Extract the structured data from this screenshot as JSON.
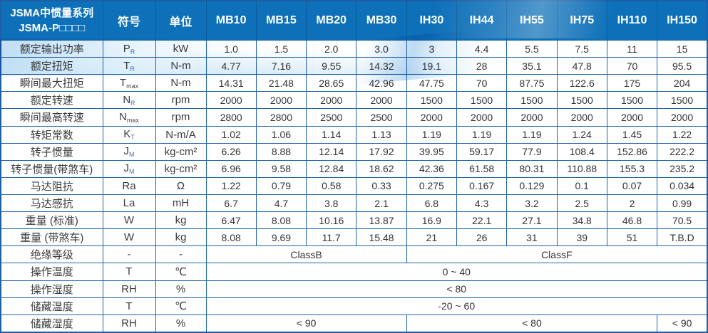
{
  "header": {
    "title_line1": "JSMA中惯量系列",
    "title_line2": "JSMA-P□□□□",
    "col_symbol": "符号",
    "col_unit": "单位",
    "models": [
      "MB10",
      "MB15",
      "MB20",
      "MB30",
      "IH30",
      "IH44",
      "IH55",
      "IH75",
      "IH110",
      "IH150"
    ]
  },
  "colors": {
    "header_bg": "#0e70b8",
    "border": "#2063ac",
    "text": "#3c3c3c",
    "subscript_accent": "#4479b6",
    "wave_tint": "#9cc8e8"
  },
  "rows": [
    {
      "label": "额定输出功率",
      "symbol": {
        "base": "P",
        "sub": "R"
      },
      "unit": "kW",
      "cells": [
        {
          "text": "1.0",
          "span": 1
        },
        {
          "text": "1.5",
          "span": 1
        },
        {
          "text": "2.0",
          "span": 1
        },
        {
          "text": "3.0",
          "span": 1
        },
        {
          "text": "3",
          "span": 1
        },
        {
          "text": "4.4",
          "span": 1
        },
        {
          "text": "5.5",
          "span": 1
        },
        {
          "text": "7.5",
          "span": 1
        },
        {
          "text": "11",
          "span": 1
        },
        {
          "text": "15",
          "span": 1
        }
      ]
    },
    {
      "label": "额定扭矩",
      "symbol": {
        "base": "T",
        "sub": "R"
      },
      "unit": "N-m",
      "cells": [
        {
          "text": "4.77",
          "span": 1
        },
        {
          "text": "7.16",
          "span": 1
        },
        {
          "text": "9.55",
          "span": 1
        },
        {
          "text": "14.32",
          "span": 1
        },
        {
          "text": "19.1",
          "span": 1
        },
        {
          "text": "28",
          "span": 1
        },
        {
          "text": "35.1",
          "span": 1
        },
        {
          "text": "47.8",
          "span": 1
        },
        {
          "text": "70",
          "span": 1
        },
        {
          "text": "95.5",
          "span": 1
        }
      ]
    },
    {
      "label": "瞬间最大扭矩",
      "symbol": {
        "base": "T",
        "sub": "max"
      },
      "unit": "N-m",
      "cells": [
        {
          "text": "14.31",
          "span": 1
        },
        {
          "text": "21.48",
          "span": 1
        },
        {
          "text": "28.65",
          "span": 1
        },
        {
          "text": "42.96",
          "span": 1
        },
        {
          "text": "47.75",
          "span": 1
        },
        {
          "text": "70",
          "span": 1
        },
        {
          "text": "87.75",
          "span": 1
        },
        {
          "text": "122.6",
          "span": 1
        },
        {
          "text": "175",
          "span": 1
        },
        {
          "text": "204",
          "span": 1
        }
      ]
    },
    {
      "label": "额定转速",
      "symbol": {
        "base": "N",
        "sub": "R"
      },
      "unit": "rpm",
      "cells": [
        {
          "text": "2000",
          "span": 1
        },
        {
          "text": "2000",
          "span": 1
        },
        {
          "text": "2000",
          "span": 1
        },
        {
          "text": "2000",
          "span": 1
        },
        {
          "text": "1500",
          "span": 1
        },
        {
          "text": "1500",
          "span": 1
        },
        {
          "text": "1500",
          "span": 1
        },
        {
          "text": "1500",
          "span": 1
        },
        {
          "text": "1500",
          "span": 1
        },
        {
          "text": "1500",
          "span": 1
        }
      ]
    },
    {
      "label": "瞬间最高转速",
      "symbol": {
        "base": "N",
        "sub": "max"
      },
      "unit": "rpm",
      "cells": [
        {
          "text": "2800",
          "span": 1
        },
        {
          "text": "2800",
          "span": 1
        },
        {
          "text": "2500",
          "span": 1
        },
        {
          "text": "2500",
          "span": 1
        },
        {
          "text": "2000",
          "span": 1
        },
        {
          "text": "2000",
          "span": 1
        },
        {
          "text": "2000",
          "span": 1
        },
        {
          "text": "2000",
          "span": 1
        },
        {
          "text": "2000",
          "span": 1
        },
        {
          "text": "2000",
          "span": 1
        }
      ]
    },
    {
      "label": "转矩常数",
      "symbol": {
        "base": "K",
        "sub": "T"
      },
      "unit": "N-m/A",
      "cells": [
        {
          "text": "1.02",
          "span": 1
        },
        {
          "text": "1.06",
          "span": 1
        },
        {
          "text": "1.14",
          "span": 1
        },
        {
          "text": "1.13",
          "span": 1
        },
        {
          "text": "1.19",
          "span": 1
        },
        {
          "text": "1.19",
          "span": 1
        },
        {
          "text": "1.19",
          "span": 1
        },
        {
          "text": "1.24",
          "span": 1
        },
        {
          "text": "1.45",
          "span": 1
        },
        {
          "text": "1.22",
          "span": 1
        }
      ]
    },
    {
      "label": "转子惯量",
      "symbol": {
        "base": "J",
        "sub": "M"
      },
      "unit": "kg-cm²",
      "cells": [
        {
          "text": "6.26",
          "span": 1
        },
        {
          "text": "8.88",
          "span": 1
        },
        {
          "text": "12.14",
          "span": 1
        },
        {
          "text": "17.92",
          "span": 1
        },
        {
          "text": "39.95",
          "span": 1
        },
        {
          "text": "59.17",
          "span": 1
        },
        {
          "text": "77.9",
          "span": 1
        },
        {
          "text": "108.4",
          "span": 1
        },
        {
          "text": "152.86",
          "span": 1
        },
        {
          "text": "222.2",
          "span": 1
        }
      ]
    },
    {
      "label": "转子惯量(带煞车)",
      "symbol": {
        "base": "J",
        "sub": "M"
      },
      "unit": "kg-cm²",
      "cells": [
        {
          "text": "6.96",
          "span": 1
        },
        {
          "text": "9.58",
          "span": 1
        },
        {
          "text": "12.84",
          "span": 1
        },
        {
          "text": "18.62",
          "span": 1
        },
        {
          "text": "42.36",
          "span": 1
        },
        {
          "text": "61.58",
          "span": 1
        },
        {
          "text": "80.31",
          "span": 1
        },
        {
          "text": "110.88",
          "span": 1
        },
        {
          "text": "155.3",
          "span": 1
        },
        {
          "text": "235.2",
          "span": 1
        }
      ]
    },
    {
      "label": "马达阻抗",
      "symbol": {
        "base": "Ra",
        "sub": ""
      },
      "unit": "Ω",
      "cells": [
        {
          "text": "1.22",
          "span": 1
        },
        {
          "text": "0.79",
          "span": 1
        },
        {
          "text": "0.58",
          "span": 1
        },
        {
          "text": "0.33",
          "span": 1
        },
        {
          "text": "0.275",
          "span": 1
        },
        {
          "text": "0.167",
          "span": 1
        },
        {
          "text": "0.129",
          "span": 1
        },
        {
          "text": "0.1",
          "span": 1
        },
        {
          "text": "0.07",
          "span": 1
        },
        {
          "text": "0.034",
          "span": 1
        }
      ]
    },
    {
      "label": "马达感抗",
      "symbol": {
        "base": "La",
        "sub": ""
      },
      "unit": "mH",
      "cells": [
        {
          "text": "6.7",
          "span": 1
        },
        {
          "text": "4.7",
          "span": 1
        },
        {
          "text": "3.8",
          "span": 1
        },
        {
          "text": "2.1",
          "span": 1
        },
        {
          "text": "6.8",
          "span": 1
        },
        {
          "text": "4.3",
          "span": 1
        },
        {
          "text": "3.2",
          "span": 1
        },
        {
          "text": "2.5",
          "span": 1
        },
        {
          "text": "2",
          "span": 1
        },
        {
          "text": "0.99",
          "span": 1
        }
      ]
    },
    {
      "label": "重量 (标准)",
      "symbol": {
        "base": "W",
        "sub": ""
      },
      "unit": "kg",
      "cells": [
        {
          "text": "6.47",
          "span": 1
        },
        {
          "text": "8.08",
          "span": 1
        },
        {
          "text": "10.16",
          "span": 1
        },
        {
          "text": "13.87",
          "span": 1
        },
        {
          "text": "16.9",
          "span": 1
        },
        {
          "text": "22.1",
          "span": 1
        },
        {
          "text": "27.1",
          "span": 1
        },
        {
          "text": "34.8",
          "span": 1
        },
        {
          "text": "46.8",
          "span": 1
        },
        {
          "text": "70.5",
          "span": 1
        }
      ]
    },
    {
      "label": "重量 (带煞车)",
      "symbol": {
        "base": "W",
        "sub": ""
      },
      "unit": "kg",
      "cells": [
        {
          "text": "8.08",
          "span": 1
        },
        {
          "text": "9.69",
          "span": 1
        },
        {
          "text": "11.7",
          "span": 1
        },
        {
          "text": "15.48",
          "span": 1
        },
        {
          "text": "21",
          "span": 1
        },
        {
          "text": "26",
          "span": 1
        },
        {
          "text": "31",
          "span": 1
        },
        {
          "text": "39",
          "span": 1
        },
        {
          "text": "51",
          "span": 1
        },
        {
          "text": "T.B.D",
          "span": 1
        }
      ]
    },
    {
      "label": "绝缘等级",
      "symbol": {
        "base": "-",
        "sub": ""
      },
      "unit": "-",
      "cells": [
        {
          "text": "ClassB",
          "span": 4
        },
        {
          "text": "ClassF",
          "span": 6
        }
      ]
    },
    {
      "label": "操作温度",
      "symbol": {
        "base": "T",
        "sub": ""
      },
      "unit": "℃",
      "cells": [
        {
          "text": "0 ~ 40",
          "span": 10
        }
      ]
    },
    {
      "label": "操作湿度",
      "symbol": {
        "base": "RH",
        "sub": ""
      },
      "unit": "%",
      "cells": [
        {
          "text": "< 80",
          "span": 10
        }
      ]
    },
    {
      "label": "储藏温度",
      "symbol": {
        "base": "T",
        "sub": ""
      },
      "unit": "℃",
      "cells": [
        {
          "text": "-20 ~ 60",
          "span": 10
        }
      ]
    },
    {
      "label": "储藏湿度",
      "symbol": {
        "base": "RH",
        "sub": ""
      },
      "unit": "%",
      "cells": [
        {
          "text": "< 90",
          "span": 4
        },
        {
          "text": "< 80",
          "span": 5
        },
        {
          "text": "< 90",
          "span": 1
        }
      ]
    }
  ]
}
